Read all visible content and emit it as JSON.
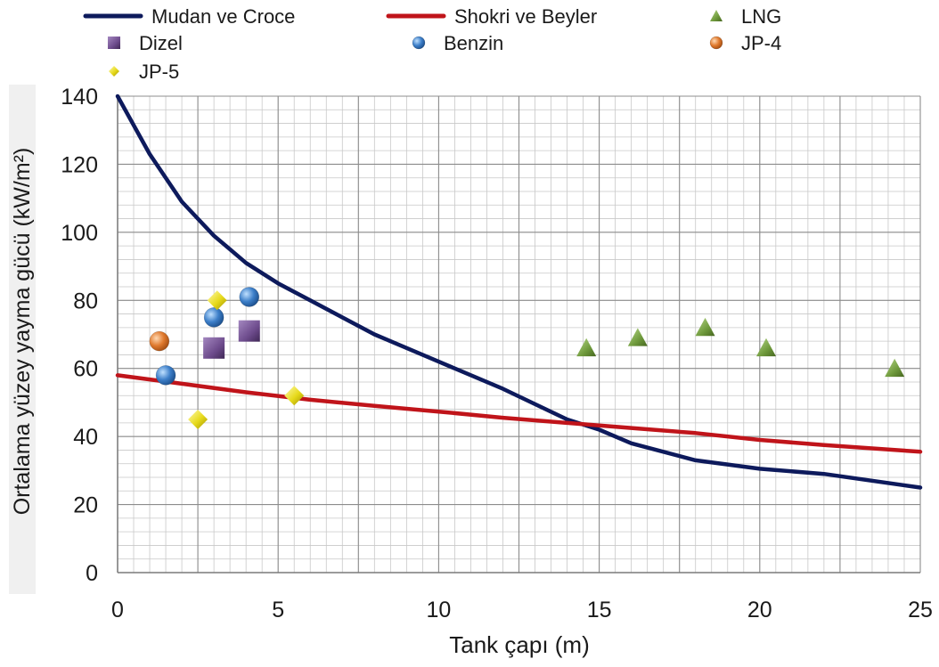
{
  "chart_data": {
    "type": "scatter",
    "xlabel": "Tank çapı (m)",
    "ylabel": "Ortalama yüzey yayma gücü (kW/m²)",
    "xlim": [
      0,
      25
    ],
    "ylim": [
      0,
      140
    ],
    "x_ticks": [
      0,
      5,
      10,
      15,
      20,
      25
    ],
    "y_ticks": [
      0,
      20,
      40,
      60,
      80,
      100,
      120,
      140
    ],
    "grid": true,
    "legend_position": "top",
    "series": [
      {
        "name": "Mudan ve Croce",
        "kind": "line",
        "color": "#0d1a5c",
        "points": [
          [
            0,
            140
          ],
          [
            1,
            123
          ],
          [
            2,
            109
          ],
          [
            3,
            99
          ],
          [
            4,
            91
          ],
          [
            5,
            85
          ],
          [
            6,
            80
          ],
          [
            8,
            70
          ],
          [
            10,
            62
          ],
          [
            12,
            54
          ],
          [
            14,
            45
          ],
          [
            15,
            42
          ],
          [
            16,
            38
          ],
          [
            18,
            33
          ],
          [
            20,
            30.5
          ],
          [
            22,
            29
          ],
          [
            25,
            25
          ]
        ]
      },
      {
        "name": "Shokri ve Beyler",
        "kind": "line",
        "color": "#c0141a",
        "points": [
          [
            0,
            58
          ],
          [
            2,
            55.5
          ],
          [
            4,
            53
          ],
          [
            6,
            50.8
          ],
          [
            8,
            49
          ],
          [
            10,
            47.3
          ],
          [
            12,
            45.5
          ],
          [
            14,
            44
          ],
          [
            16,
            42.5
          ],
          [
            18,
            41
          ],
          [
            20,
            39
          ],
          [
            22,
            37.5
          ],
          [
            25,
            35.5
          ]
        ]
      },
      {
        "name": "LNG",
        "kind": "marker",
        "marker": "triangle",
        "color": "#6f9a3c",
        "points": [
          [
            14.6,
            66
          ],
          [
            16.2,
            69
          ],
          [
            18.3,
            72
          ],
          [
            20.2,
            66
          ],
          [
            24.2,
            60
          ]
        ]
      },
      {
        "name": "Dizel",
        "kind": "marker",
        "marker": "square",
        "color": "#6d4b8c",
        "points": [
          [
            3.0,
            66
          ],
          [
            4.1,
            71
          ]
        ]
      },
      {
        "name": "Benzin",
        "kind": "marker",
        "marker": "circle",
        "color": "#3d7fc9",
        "points": [
          [
            1.5,
            58
          ],
          [
            3.0,
            75
          ],
          [
            4.1,
            81
          ]
        ]
      },
      {
        "name": "JP-4",
        "kind": "marker",
        "marker": "circle",
        "color": "#e07a2e",
        "points": [
          [
            1.3,
            68
          ]
        ]
      },
      {
        "name": "JP-5",
        "kind": "marker",
        "marker": "diamond",
        "color": "#e6d91a",
        "points": [
          [
            2.5,
            45
          ],
          [
            3.1,
            80
          ],
          [
            5.5,
            52
          ]
        ]
      }
    ]
  }
}
